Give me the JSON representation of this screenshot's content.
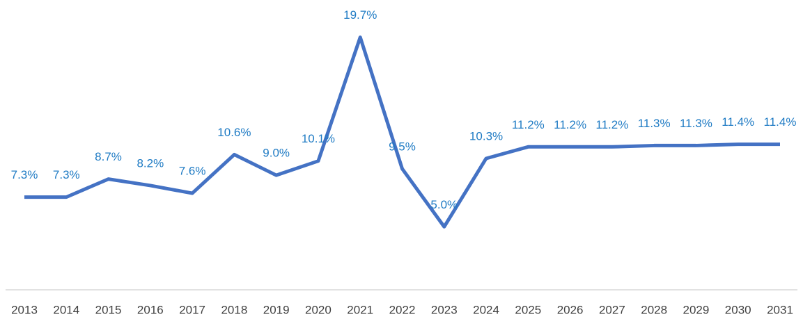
{
  "chart_data": {
    "type": "line",
    "categories": [
      "2013",
      "2014",
      "2015",
      "2016",
      "2017",
      "2018",
      "2019",
      "2020",
      "2021",
      "2022",
      "2023",
      "2024",
      "2025",
      "2026",
      "2027",
      "2028",
      "2029",
      "2030",
      "2031"
    ],
    "series": [
      {
        "color": "#4472c4",
        "values": [
          7.3,
          7.3,
          8.7,
          8.2,
          7.6,
          10.6,
          9.0,
          10.1,
          19.7,
          9.5,
          5.0,
          10.3,
          11.2,
          11.2,
          11.2,
          11.3,
          11.3,
          11.4,
          11.4
        ],
        "value_labels": [
          "7.3%",
          "7.3%",
          "8.7%",
          "8.2%",
          "7.6%",
          "10.6%",
          "9.0%",
          "10.1%",
          "19.7%",
          "9.5%",
          "5.0%",
          "10.3%",
          "11.2%",
          "11.2%",
          "11.2%",
          "11.3%",
          "11.3%",
          "11.4%",
          "11.4%"
        ]
      }
    ],
    "label_color": "#1f7bc4",
    "ylim": [
      0,
      22
    ]
  }
}
